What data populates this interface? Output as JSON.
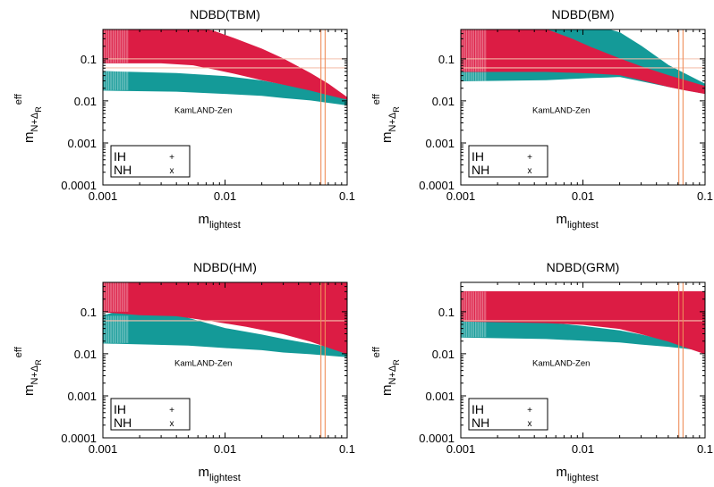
{
  "chart_data": [
    {
      "type": "scatter",
      "title": "NDBD(TBM)",
      "xlabel": {
        "main": "m",
        "sub": "lightest"
      },
      "ylabel": {
        "main": "m",
        "sub": "N+Δ",
        "subsub": "R",
        "sup": "eff"
      },
      "xscale": "log",
      "yscale": "log",
      "xlim": [
        0.001,
        0.1
      ],
      "ylim": [
        0.0001,
        0.5
      ],
      "xticks": [
        {
          "v": 0.001,
          "label": "0.001"
        },
        {
          "v": 0.01,
          "label": "0.01"
        },
        {
          "v": 0.1,
          "label": "0.1"
        }
      ],
      "yticks": [
        {
          "v": 0.0001,
          "label": "0.0001"
        },
        {
          "v": 0.001,
          "label": "0.001"
        },
        {
          "v": 0.01,
          "label": "0.01"
        },
        {
          "v": 0.1,
          "label": "0.1"
        }
      ],
      "annotation": "KamLAND-Zen",
      "hlines": [
        0.061,
        0.1
      ],
      "vlines": [
        0.061,
        0.066
      ],
      "legend": {
        "position": "bottom-left",
        "entries": [
          {
            "name": "IH",
            "marker": "+"
          },
          {
            "name": "NH",
            "marker": "x"
          }
        ]
      },
      "series": [
        {
          "name": "IH",
          "color": "#149a98",
          "x": [
            0.001,
            0.004,
            0.01,
            0.02,
            0.03,
            0.05,
            0.1
          ],
          "upper": [
            0.05,
            0.045,
            0.038,
            0.03,
            0.024,
            0.018,
            0.011
          ],
          "lower": [
            0.018,
            0.017,
            0.015,
            0.0135,
            0.012,
            0.0105,
            0.008
          ]
        },
        {
          "name": "NH",
          "color": "#dc1c44",
          "x": [
            0.001,
            0.003,
            0.0055,
            0.0065,
            0.008,
            0.012,
            0.02,
            0.03,
            0.05,
            0.07,
            0.1
          ],
          "upper": [
            0.5,
            0.5,
            0.5,
            0.5,
            0.46,
            0.3,
            0.17,
            0.1,
            0.045,
            0.025,
            0.012
          ],
          "lower": [
            0.08,
            0.08,
            0.072,
            0.065,
            0.058,
            0.045,
            0.032,
            0.025,
            0.018,
            0.014,
            0.011
          ]
        }
      ]
    },
    {
      "type": "scatter",
      "title": "NDBD(BM)",
      "xlabel": {
        "main": "m",
        "sub": "lightest"
      },
      "ylabel": {
        "main": "m",
        "sub": "N+Δ",
        "subsub": "R",
        "sup": "eff"
      },
      "xscale": "log",
      "yscale": "log",
      "xlim": [
        0.001,
        0.1
      ],
      "ylim": [
        0.0001,
        0.5
      ],
      "xticks": [
        {
          "v": 0.001,
          "label": "0.001"
        },
        {
          "v": 0.01,
          "label": "0.01"
        },
        {
          "v": 0.1,
          "label": "0.1"
        }
      ],
      "yticks": [
        {
          "v": 0.0001,
          "label": "0.0001"
        },
        {
          "v": 0.001,
          "label": "0.001"
        },
        {
          "v": 0.01,
          "label": "0.01"
        },
        {
          "v": 0.1,
          "label": "0.1"
        }
      ],
      "annotation": "KamLAND-Zen",
      "hlines": [
        0.061,
        0.1
      ],
      "vlines": [
        0.061,
        0.066
      ],
      "legend": {
        "position": "bottom-left",
        "entries": [
          {
            "name": "IH",
            "marker": "+"
          },
          {
            "name": "NH",
            "marker": "x"
          }
        ]
      },
      "series": [
        {
          "name": "IH",
          "color": "#149a98",
          "x": [
            0.001,
            0.005,
            0.008,
            0.012,
            0.016,
            0.02,
            0.03,
            0.05,
            0.1
          ],
          "upper": [
            0.5,
            0.5,
            0.5,
            0.5,
            0.5,
            0.42,
            0.2,
            0.07,
            0.025
          ],
          "lower": [
            0.03,
            0.032,
            0.034,
            0.036,
            0.037,
            0.038,
            0.03,
            0.022,
            0.015
          ]
        },
        {
          "name": "NH",
          "color": "#dc1c44",
          "x": [
            0.001,
            0.005,
            0.008,
            0.012,
            0.02,
            0.03,
            0.05,
            0.07,
            0.1
          ],
          "upper": [
            0.5,
            0.5,
            0.3,
            0.18,
            0.1,
            0.065,
            0.04,
            0.03,
            0.022
          ],
          "lower": [
            0.05,
            0.05,
            0.048,
            0.046,
            0.042,
            0.032,
            0.022,
            0.018,
            0.015
          ]
        }
      ]
    },
    {
      "type": "scatter",
      "title": "NDBD(HM)",
      "xlabel": {
        "main": "m",
        "sub": "lightest"
      },
      "ylabel": {
        "main": "m",
        "sub": "N+Δ",
        "subsub": "R",
        "sup": "eff"
      },
      "xscale": "log",
      "yscale": "log",
      "xlim": [
        0.001,
        0.1
      ],
      "ylim": [
        0.0001,
        0.5
      ],
      "xticks": [
        {
          "v": 0.001,
          "label": "0.001"
        },
        {
          "v": 0.01,
          "label": "0.01"
        },
        {
          "v": 0.1,
          "label": "0.1"
        }
      ],
      "yticks": [
        {
          "v": 0.0001,
          "label": "0.0001"
        },
        {
          "v": 0.001,
          "label": "0.001"
        },
        {
          "v": 0.01,
          "label": "0.01"
        },
        {
          "v": 0.1,
          "label": "0.1"
        }
      ],
      "annotation": "KamLAND-Zen",
      "hlines": [
        0.061
      ],
      "vlines": [
        0.061,
        0.066
      ],
      "legend": {
        "position": "bottom-left",
        "entries": [
          {
            "name": "IH",
            "marker": "+"
          },
          {
            "name": "NH",
            "marker": "x"
          }
        ]
      },
      "series": [
        {
          "name": "IH",
          "color": "#149a98",
          "x": [
            0.001,
            0.0024,
            0.005,
            0.01,
            0.02,
            0.03,
            0.05,
            0.1
          ],
          "upper": [
            0.08,
            0.16,
            0.07,
            0.04,
            0.028,
            0.022,
            0.017,
            0.012
          ],
          "lower": [
            0.018,
            0.017,
            0.016,
            0.014,
            0.0125,
            0.011,
            0.01,
            0.0085
          ]
        },
        {
          "name": "NH",
          "color": "#dc1c44",
          "x": [
            0.001,
            0.002,
            0.004,
            0.008,
            0.015,
            0.03,
            0.05,
            0.1
          ],
          "upper": [
            0.5,
            0.5,
            0.5,
            0.5,
            0.5,
            0.5,
            0.5,
            0.5
          ],
          "lower": [
            0.1,
            0.085,
            0.08,
            0.06,
            0.045,
            0.03,
            0.02,
            0.01
          ]
        }
      ]
    },
    {
      "type": "scatter",
      "title": "NDBD(GRM)",
      "xlabel": {
        "main": "m",
        "sub": "lightest"
      },
      "ylabel": {
        "main": "m",
        "sub": "N+Δ",
        "subsub": "R",
        "sup": "eff"
      },
      "xscale": "log",
      "yscale": "log",
      "xlim": [
        0.001,
        0.1
      ],
      "ylim": [
        0.0001,
        0.5
      ],
      "xticks": [
        {
          "v": 0.001,
          "label": "0.001"
        },
        {
          "v": 0.01,
          "label": "0.01"
        },
        {
          "v": 0.1,
          "label": "0.1"
        }
      ],
      "yticks": [
        {
          "v": 0.0001,
          "label": "0.0001"
        },
        {
          "v": 0.001,
          "label": "0.001"
        },
        {
          "v": 0.01,
          "label": "0.01"
        },
        {
          "v": 0.1,
          "label": "0.1"
        }
      ],
      "annotation": "KamLAND-Zen",
      "hlines": [
        0.061
      ],
      "vlines": [
        0.061,
        0.066
      ],
      "legend": {
        "position": "bottom-left",
        "entries": [
          {
            "name": "IH",
            "marker": "+"
          },
          {
            "name": "NH",
            "marker": "x"
          }
        ]
      },
      "series": [
        {
          "name": "IH",
          "color": "#149a98",
          "x": [
            0.001,
            0.005,
            0.01,
            0.02,
            0.03,
            0.05,
            0.1
          ],
          "upper": [
            0.06,
            0.055,
            0.045,
            0.035,
            0.028,
            0.02,
            0.013
          ],
          "lower": [
            0.025,
            0.023,
            0.021,
            0.019,
            0.017,
            0.015,
            0.012
          ]
        },
        {
          "name": "NH",
          "color": "#dc1c44",
          "x": [
            0.001,
            0.005,
            0.01,
            0.02,
            0.03,
            0.05,
            0.1
          ],
          "upper": [
            0.3,
            0.3,
            0.3,
            0.3,
            0.3,
            0.3,
            0.3
          ],
          "lower": [
            0.06,
            0.055,
            0.05,
            0.04,
            0.03,
            0.02,
            0.01
          ]
        }
      ]
    }
  ]
}
